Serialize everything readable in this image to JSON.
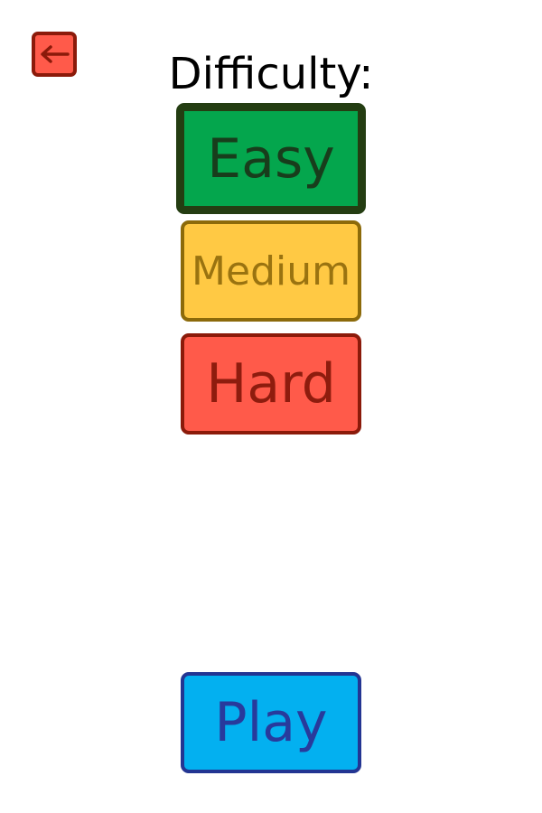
{
  "back_button": {
    "icon": "arrow-left-icon"
  },
  "title": "Difficulty:",
  "difficulty": {
    "selected": "Easy",
    "options": [
      {
        "label": "Easy",
        "color": "#04a64d"
      },
      {
        "label": "Medium",
        "color": "#ffc944"
      },
      {
        "label": "Hard",
        "color": "#ff5a4a"
      }
    ]
  },
  "play_label": "Play",
  "play_color": "#03b0f0"
}
